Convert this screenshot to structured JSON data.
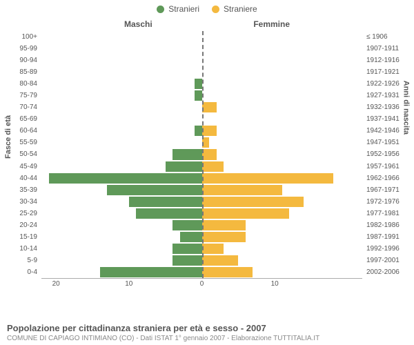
{
  "chart": {
    "type": "population-pyramid",
    "legend": [
      {
        "label": "Stranieri",
        "color": "#5f9959"
      },
      {
        "label": "Straniere",
        "color": "#f4b93f"
      }
    ],
    "header_left": "Maschi",
    "header_right": "Femmine",
    "y_left_title": "Fasce di età",
    "y_right_title": "Anni di nascita",
    "age_labels": [
      "100+",
      "95-99",
      "90-94",
      "85-89",
      "80-84",
      "75-79",
      "70-74",
      "65-69",
      "60-64",
      "55-59",
      "50-54",
      "45-49",
      "40-44",
      "35-39",
      "30-34",
      "25-29",
      "20-24",
      "15-19",
      "10-14",
      "5-9",
      "0-4"
    ],
    "birth_labels": [
      "≤ 1906",
      "1907-1911",
      "1912-1916",
      "1917-1921",
      "1922-1926",
      "1927-1931",
      "1932-1936",
      "1937-1941",
      "1942-1946",
      "1947-1951",
      "1952-1956",
      "1957-1961",
      "1962-1966",
      "1967-1971",
      "1972-1976",
      "1977-1981",
      "1982-1986",
      "1987-1991",
      "1992-1996",
      "1997-2001",
      "2002-2006"
    ],
    "male_values": [
      0,
      0,
      0,
      0,
      1,
      1,
      0,
      0,
      1,
      0,
      4,
      5,
      21,
      13,
      10,
      9,
      4,
      3,
      4,
      4,
      14
    ],
    "female_values": [
      0,
      0,
      0,
      0,
      0,
      0,
      2,
      0,
      2,
      1,
      2,
      3,
      18,
      11,
      14,
      12,
      6,
      6,
      3,
      5,
      7
    ],
    "max_value": 22,
    "x_ticks_left": [
      20,
      10,
      0
    ],
    "x_ticks_right": [
      10
    ],
    "male_color": "#5f9959",
    "female_color": "#f4b93f",
    "background_color": "#ffffff",
    "axis_color": "#aaaaaa",
    "tick_font_size": 10,
    "label_color": "#555555"
  },
  "caption": {
    "title": "Popolazione per cittadinanza straniera per età e sesso - 2007",
    "subtitle": "COMUNE DI CAPIAGO INTIMIANO (CO) - Dati ISTAT 1° gennaio 2007 - Elaborazione TUTTITALIA.IT"
  }
}
